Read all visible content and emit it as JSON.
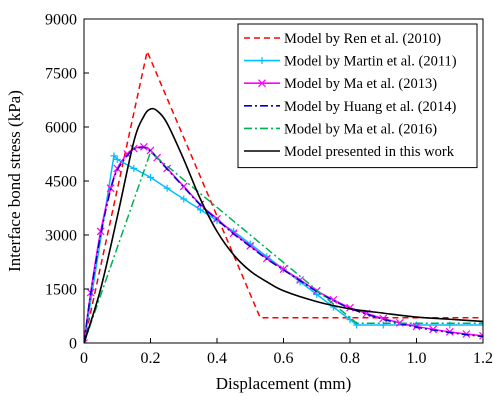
{
  "chart_data": {
    "type": "line",
    "title": "",
    "xlabel": "Displacement (mm)",
    "ylabel": "Interface bond stress (kPa)",
    "xlim": [
      0,
      1.2
    ],
    "ylim": [
      0,
      9000
    ],
    "x_ticks": [
      "0",
      "0.2",
      "0.4",
      "0.6",
      "0.8",
      "1.0",
      "1.2"
    ],
    "y_ticks": [
      "0",
      "1500",
      "3000",
      "4500",
      "6000",
      "7500",
      "9000"
    ],
    "grid": false,
    "legend_position": "top-right",
    "series": [
      {
        "name": "Model by Ren et al. (2010)",
        "color": "#ff0000",
        "dash": "dashed",
        "marker": "none",
        "x": [
          0,
          0.19,
          0.53,
          1.2
        ],
        "y": [
          0,
          8100,
          700,
          700
        ]
      },
      {
        "name": "Model by Martin et al. (2011)",
        "color": "#00bfff",
        "dash": "solid",
        "marker": "plus",
        "x": [
          0,
          0.09,
          0.1,
          0.15,
          0.2,
          0.25,
          0.3,
          0.35,
          0.4,
          0.45,
          0.5,
          0.55,
          0.6,
          0.65,
          0.7,
          0.75,
          0.8,
          0.82,
          0.9,
          1.0,
          1.1,
          1.2
        ],
        "y": [
          0,
          5200,
          5100,
          4850,
          4600,
          4300,
          4000,
          3700,
          3400,
          3100,
          2750,
          2400,
          2050,
          1700,
          1350,
          1000,
          650,
          500,
          500,
          500,
          500,
          500
        ]
      },
      {
        "name": "Model by Ma et al. (2013)",
        "color": "#ff00ff",
        "dash": "solid",
        "marker": "x",
        "x": [
          0,
          0.02,
          0.05,
          0.08,
          0.1,
          0.13,
          0.15,
          0.18,
          0.2,
          0.22,
          0.25,
          0.3,
          0.35,
          0.4,
          0.45,
          0.5,
          0.55,
          0.6,
          0.65,
          0.7,
          0.75,
          0.8,
          0.85,
          0.9,
          0.95,
          1.0,
          1.05,
          1.1,
          1.15,
          1.2
        ],
        "y": [
          0,
          1400,
          3100,
          4300,
          4850,
          5250,
          5400,
          5450,
          5350,
          5150,
          4850,
          4350,
          3850,
          3450,
          3050,
          2700,
          2350,
          2050,
          1750,
          1450,
          1200,
          980,
          820,
          680,
          560,
          460,
          380,
          310,
          250,
          200
        ]
      },
      {
        "name": "Model by Huang et al. (2014)",
        "color": "#0000cd",
        "dash": "dashdot",
        "marker": "none",
        "x": [
          0,
          0.02,
          0.05,
          0.08,
          0.1,
          0.13,
          0.15,
          0.18,
          0.2,
          0.22,
          0.25,
          0.3,
          0.35,
          0.4,
          0.45,
          0.5,
          0.55,
          0.6,
          0.65,
          0.7,
          0.75,
          0.8,
          0.85,
          0.9,
          0.95,
          1.0,
          1.05,
          1.1,
          1.15,
          1.2
        ],
        "y": [
          0,
          1350,
          3000,
          4250,
          4800,
          5200,
          5380,
          5430,
          5330,
          5130,
          4830,
          4330,
          3830,
          3430,
          3030,
          2680,
          2330,
          2030,
          1730,
          1430,
          1180,
          960,
          800,
          660,
          540,
          440,
          360,
          290,
          230,
          180
        ]
      },
      {
        "name": "Model by Ma et al. (2016)",
        "color": "#00b050",
        "dash": "dashdot",
        "marker": "none",
        "x": [
          0,
          0.2,
          0.82,
          1.2
        ],
        "y": [
          0,
          5300,
          550,
          550
        ]
      },
      {
        "name": "Model presented in this work",
        "color": "#000000",
        "dash": "solid",
        "marker": "none",
        "x": [
          0,
          0.05,
          0.1,
          0.15,
          0.18,
          0.2,
          0.22,
          0.25,
          0.3,
          0.35,
          0.4,
          0.45,
          0.5,
          0.55,
          0.6,
          0.7,
          0.8,
          0.9,
          1.0,
          1.1,
          1.2
        ],
        "y": [
          0,
          1500,
          3500,
          5600,
          6300,
          6500,
          6450,
          6100,
          5100,
          4000,
          3100,
          2450,
          2000,
          1700,
          1450,
          1150,
          950,
          830,
          720,
          660,
          600
        ]
      }
    ]
  }
}
